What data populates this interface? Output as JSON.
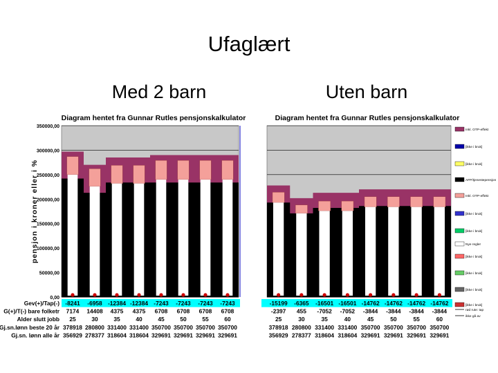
{
  "slide": {
    "title": "Ufaglært",
    "subtitle_left": "Med 2 barn",
    "subtitle_right": "Uten barn"
  },
  "colors": {
    "plot_bg": "#c8c8c8",
    "black_bar": "#000000",
    "white_bar": "#ffffff",
    "pink_bar": "#f4a09a",
    "maroon_area": "#993366",
    "cyan_row": "#00ffff",
    "grid": "#000000"
  },
  "icons": {
    "red_marker": "red-dot-icon",
    "green_marker": "green-dot-icon",
    "triangle_marker": "triangle-icon"
  },
  "chart_data": [
    {
      "type": "bar",
      "title": "Diagram hentet fra Gunnar Rutles pensjonskalkulator",
      "ylabel": "pensjon i kroner eller i %",
      "yticks": [
        "350000,00",
        "300000,00",
        "250000,00",
        "200000,00",
        "150000,00",
        "100000,00",
        "50000,00",
        "0,00"
      ],
      "ylim": [
        0,
        350000
      ],
      "categories": [
        "25",
        "30",
        "35",
        "40",
        "45",
        "50",
        "55",
        "60"
      ],
      "series": [
        {
          "values": [
            242000,
            213000,
            234000,
            234000,
            234000,
            234000,
            234000,
            234000
          ]
        },
        {
          "values": [
            250000,
            226000,
            232000,
            232000,
            240000,
            240000,
            240000,
            240000
          ]
        },
        {
          "values": [
            287000,
            262000,
            269000,
            269000,
            279000,
            279000,
            279000,
            279000
          ]
        },
        {
          "values": [
            297000,
            270000,
            285000,
            285000,
            290000,
            290000,
            290000,
            290000
          ]
        }
      ],
      "table": {
        "labels": [
          "Gev(+)/Tap(-)",
          "G(+)/T(-) bare folketr",
          "Alder slutt jobb",
          "Gj.sn.lønn beste 20 år",
          "Gj.sn. lønn alle år"
        ],
        "rows": [
          [
            "-8241",
            "-6958",
            "-12384",
            "-12384",
            "-7243",
            "-7243",
            "-7243",
            "-7243"
          ],
          [
            "7174",
            "14408",
            "4375",
            "4375",
            "6708",
            "6708",
            "6708",
            "6708"
          ],
          [
            "25",
            "30",
            "35",
            "40",
            "45",
            "50",
            "55",
            "60"
          ],
          [
            "378918",
            "280800",
            "331400",
            "331400",
            "350700",
            "350700",
            "350700",
            "350700"
          ],
          [
            "356929",
            "278377",
            "318604",
            "318604",
            "329691",
            "329691",
            "329691",
            "329691"
          ]
        ]
      }
    },
    {
      "type": "bar",
      "title": "Diagram hentet fra Gunnar Rutles pensjonskalkulator",
      "ylim": [
        0,
        350000
      ],
      "categories": [
        "25",
        "30",
        "35",
        "40",
        "45",
        "50",
        "55",
        "60"
      ],
      "series": [
        {
          "values": [
            193000,
            171000,
            182000,
            182000,
            186000,
            186000,
            186000,
            186000
          ]
        },
        {
          "values": [
            193000,
            171000,
            176000,
            176000,
            184000,
            184000,
            184000,
            184000
          ]
        },
        {
          "values": [
            214000,
            188000,
            196000,
            196000,
            205000,
            205000,
            205000,
            205000
          ]
        },
        {
          "values": [
            228000,
            202000,
            213000,
            213000,
            220000,
            220000,
            220000,
            220000
          ]
        }
      ],
      "legend_position": "right",
      "legend": [
        "Inkl. OTP-effekt",
        "[ikke i bruk]",
        "[ikke i bruk]",
        "AFP/tjenestepensjon",
        "Inkl. OTP-effekt",
        "[ikke i bruk]",
        "[ikke i bruk]",
        "Nye regler",
        "[ikke i bruk]",
        "[ikke i bruk]",
        "[ikke i bruk]",
        "[ikke i bruk]",
        "rød rute: tap",
        "ikke gå av"
      ],
      "table": {
        "rows": [
          [
            "-15199",
            "-6365",
            "-16501",
            "-16501",
            "-14762",
            "-14762",
            "-14762",
            "-14762"
          ],
          [
            "-2397",
            "455",
            "-7052",
            "-7052",
            "-3844",
            "-3844",
            "-3844",
            "-3844"
          ],
          [
            "25",
            "30",
            "35",
            "40",
            "45",
            "50",
            "55",
            "60"
          ],
          [
            "378918",
            "280800",
            "331400",
            "331400",
            "350700",
            "350700",
            "350700",
            "350700"
          ],
          [
            "356929",
            "278377",
            "318604",
            "318604",
            "329691",
            "329691",
            "329691",
            "329691"
          ]
        ]
      }
    }
  ]
}
